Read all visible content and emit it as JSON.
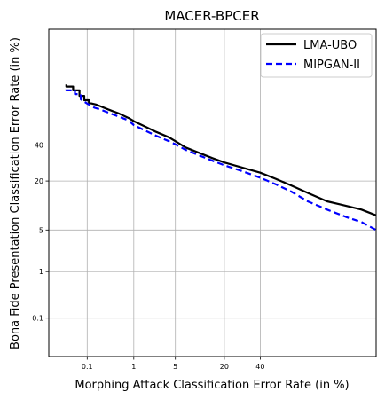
{
  "chart_data": {
    "type": "line",
    "scale": "normal-deviate",
    "title": "MACER-BPCER",
    "xlabel": "Morphing Attack Classification Error Rate (in %)",
    "ylabel": "Bona Fide Presentation Classification Error Rate (in %)",
    "xlim": [
      0.01,
      95
    ],
    "ylim": [
      0.01,
      95
    ],
    "xticks": [
      0.1,
      1,
      5,
      20,
      40
    ],
    "xtick_labels": [
      "0.1",
      "1",
      "5",
      "20",
      "40"
    ],
    "yticks": [
      0.1,
      1,
      5,
      20,
      40
    ],
    "ytick_labels": [
      "0.1",
      "1",
      "5",
      "20",
      "40"
    ],
    "grid": true,
    "legend_position": "top-right",
    "series": [
      {
        "name": "LMA-UBO",
        "color": "#000000",
        "style": "solid",
        "x": [
          0.03,
          0.03,
          0.045,
          0.045,
          0.065,
          0.065,
          0.085,
          0.085,
          0.11,
          0.11,
          0.16,
          0.2,
          0.3,
          0.5,
          0.8,
          1,
          1.5,
          2.5,
          4,
          5,
          7,
          10,
          15,
          20,
          30,
          40,
          50,
          60,
          70,
          80,
          88,
          92,
          95
        ],
        "y": [
          77,
          76,
          76,
          74,
          74,
          71,
          71,
          68.5,
          68.5,
          67,
          66,
          65,
          63,
          60.5,
          57.5,
          55.5,
          52.5,
          48.5,
          45,
          42.5,
          38.5,
          35.5,
          32,
          29.5,
          26.5,
          24,
          21,
          18,
          15,
          12,
          10.5,
          9.5,
          8
        ]
      },
      {
        "name": "MIPGAN-II",
        "color": "#0000ff",
        "style": "dashed",
        "x": [
          0.03,
          0.03,
          0.05,
          0.05,
          0.07,
          0.07,
          0.1,
          0.15,
          0.2,
          0.3,
          0.5,
          0.8,
          1,
          1.5,
          2.5,
          4,
          5,
          7,
          10,
          15,
          20,
          30,
          40,
          50,
          60,
          70,
          80,
          88,
          92,
          95
        ],
        "y": [
          74.5,
          74,
          74,
          72,
          72,
          69,
          66.5,
          64,
          63,
          61,
          58.5,
          56,
          53,
          50,
          46,
          42.5,
          40.5,
          37,
          34,
          30.5,
          28,
          24.5,
          21.5,
          18.5,
          15.5,
          12,
          9.5,
          7.5,
          6.5,
          5
        ]
      }
    ]
  }
}
